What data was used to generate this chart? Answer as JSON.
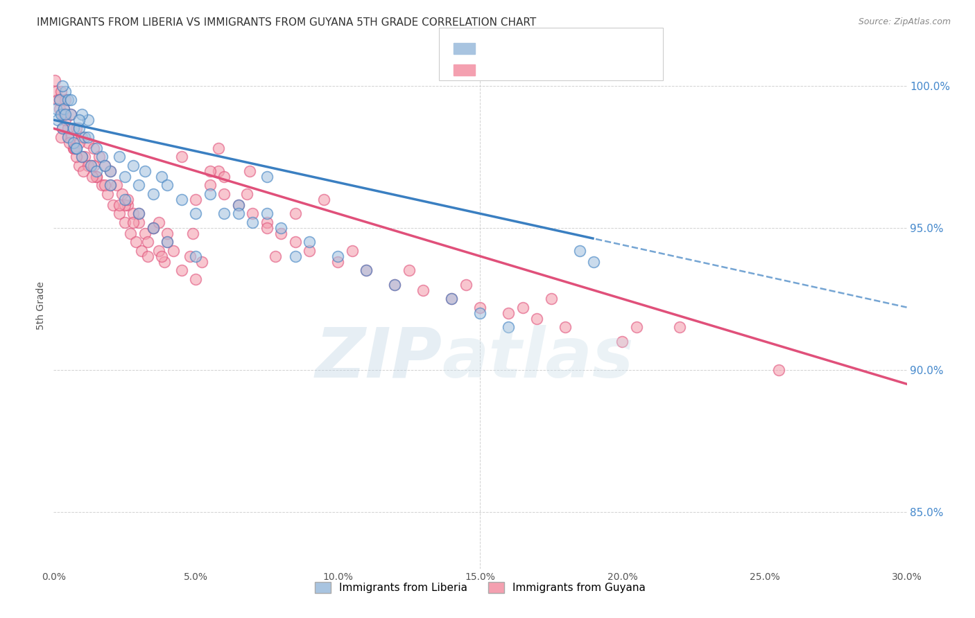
{
  "title": "IMMIGRANTS FROM LIBERIA VS IMMIGRANTS FROM GUYANA 5TH GRADE CORRELATION CHART",
  "source": "Source: ZipAtlas.com",
  "ylabel": "5th Grade",
  "x_tick_labels": [
    "0.0%",
    "5.0%",
    "10.0%",
    "15.0%",
    "20.0%",
    "25.0%",
    "30.0%"
  ],
  "x_tick_vals": [
    0,
    5,
    10,
    15,
    20,
    25,
    30
  ],
  "y_tick_labels": [
    "100.0%",
    "95.0%",
    "90.0%",
    "85.0%"
  ],
  "y_tick_vals": [
    100,
    95,
    90,
    85
  ],
  "xlim": [
    0,
    30
  ],
  "ylim": [
    83.0,
    101.5
  ],
  "legend_series1": "Immigrants from Liberia",
  "legend_series2": "Immigrants from Guyana",
  "blue_color": "#a8c4e0",
  "pink_color": "#f4a0b0",
  "blue_line_color": "#3a7fc1",
  "pink_line_color": "#e0507a",
  "watermark_color": "#c8d8e8",
  "watermark_zip_color": "#b0c8e0",
  "background_color": "#ffffff",
  "blue_intercept": 98.8,
  "blue_slope": -0.22,
  "pink_intercept": 98.5,
  "pink_slope": -0.3,
  "blue_solid_end": 19.0,
  "blue_line_end": 30.0,
  "pink_line_end": 30.0,
  "blue_scatter_x": [
    0.1,
    0.15,
    0.2,
    0.25,
    0.3,
    0.35,
    0.4,
    0.5,
    0.6,
    0.7,
    0.8,
    0.9,
    1.0,
    1.1,
    1.2,
    1.3,
    1.5,
    1.7,
    2.0,
    2.3,
    2.5,
    2.8,
    3.0,
    3.2,
    3.5,
    3.8,
    4.0,
    4.5,
    5.0,
    5.5,
    6.0,
    6.5,
    7.0,
    7.5,
    8.0,
    9.0,
    10.0,
    11.0,
    12.0,
    14.0,
    15.0,
    16.0,
    0.5,
    0.7,
    1.0,
    1.5,
    2.0,
    2.5,
    3.0,
    3.5,
    4.0,
    5.0,
    6.5,
    8.5,
    0.3,
    0.6,
    0.9,
    1.2,
    1.8,
    7.5,
    19.0,
    18.5,
    0.4,
    0.8
  ],
  "blue_scatter_y": [
    99.2,
    98.8,
    99.5,
    99.0,
    98.5,
    99.2,
    99.8,
    98.2,
    99.0,
    98.5,
    97.8,
    98.5,
    97.5,
    98.2,
    98.8,
    97.2,
    97.8,
    97.5,
    97.0,
    97.5,
    96.8,
    97.2,
    96.5,
    97.0,
    96.2,
    96.8,
    96.5,
    96.0,
    95.5,
    96.2,
    95.5,
    95.8,
    95.2,
    95.5,
    95.0,
    94.5,
    94.0,
    93.5,
    93.0,
    92.5,
    92.0,
    91.5,
    99.5,
    98.0,
    99.0,
    97.0,
    96.5,
    96.0,
    95.5,
    95.0,
    94.5,
    94.0,
    95.5,
    94.0,
    100.0,
    99.5,
    98.8,
    98.2,
    97.2,
    96.8,
    93.8,
    94.2,
    99.0,
    97.8
  ],
  "pink_scatter_x": [
    0.05,
    0.1,
    0.15,
    0.2,
    0.25,
    0.3,
    0.35,
    0.4,
    0.5,
    0.6,
    0.7,
    0.8,
    0.9,
    1.0,
    1.1,
    1.2,
    1.3,
    1.4,
    1.5,
    1.6,
    1.7,
    1.8,
    1.9,
    2.0,
    2.1,
    2.2,
    2.3,
    2.4,
    2.5,
    2.6,
    2.7,
    2.8,
    2.9,
    3.0,
    3.1,
    3.2,
    3.3,
    3.5,
    3.7,
    3.9,
    4.0,
    4.2,
    4.5,
    4.8,
    5.0,
    5.2,
    5.5,
    5.8,
    6.0,
    6.5,
    7.0,
    7.5,
    8.0,
    8.5,
    9.0,
    10.0,
    11.0,
    12.0,
    13.0,
    14.0,
    15.0,
    16.0,
    17.0,
    18.0,
    20.0,
    22.0,
    25.5,
    0.3,
    0.5,
    0.7,
    1.0,
    1.5,
    2.0,
    2.5,
    3.0,
    3.5,
    4.0,
    5.0,
    6.0,
    7.5,
    0.2,
    0.4,
    0.6,
    0.8,
    1.2,
    1.8,
    2.3,
    2.8,
    3.3,
    3.8,
    4.5,
    5.5,
    6.8,
    8.5,
    10.5,
    12.5,
    0.9,
    1.4,
    2.6,
    3.7,
    4.9,
    5.8,
    6.9,
    7.8,
    9.5,
    14.5,
    16.5,
    17.5,
    20.5,
    0.25,
    0.35,
    0.55,
    0.75,
    1.05,
    1.35
  ],
  "pink_scatter_y": [
    100.2,
    99.8,
    99.5,
    99.2,
    99.8,
    98.5,
    99.2,
    99.5,
    98.2,
    99.0,
    97.8,
    98.5,
    97.2,
    98.2,
    97.5,
    98.0,
    97.2,
    97.8,
    96.8,
    97.5,
    96.5,
    97.2,
    96.2,
    97.0,
    95.8,
    96.5,
    95.5,
    96.2,
    95.2,
    95.8,
    94.8,
    95.5,
    94.5,
    95.2,
    94.2,
    94.8,
    94.0,
    95.0,
    94.2,
    93.8,
    94.5,
    94.2,
    93.5,
    94.0,
    93.2,
    93.8,
    96.5,
    97.0,
    96.2,
    95.8,
    95.5,
    95.2,
    94.8,
    94.5,
    94.2,
    93.8,
    93.5,
    93.0,
    92.8,
    92.5,
    92.2,
    92.0,
    91.8,
    91.5,
    91.0,
    91.5,
    90.0,
    99.0,
    98.5,
    97.8,
    97.5,
    96.8,
    96.5,
    95.8,
    95.5,
    95.0,
    94.8,
    96.0,
    96.8,
    95.0,
    99.5,
    98.8,
    98.2,
    97.5,
    97.2,
    96.5,
    95.8,
    95.2,
    94.5,
    94.0,
    97.5,
    97.0,
    96.2,
    95.5,
    94.2,
    93.5,
    98.0,
    97.2,
    96.0,
    95.2,
    94.8,
    97.8,
    97.0,
    94.0,
    96.0,
    93.0,
    92.2,
    92.5,
    91.5,
    98.2,
    99.0,
    98.0,
    97.8,
    97.0,
    96.8
  ]
}
